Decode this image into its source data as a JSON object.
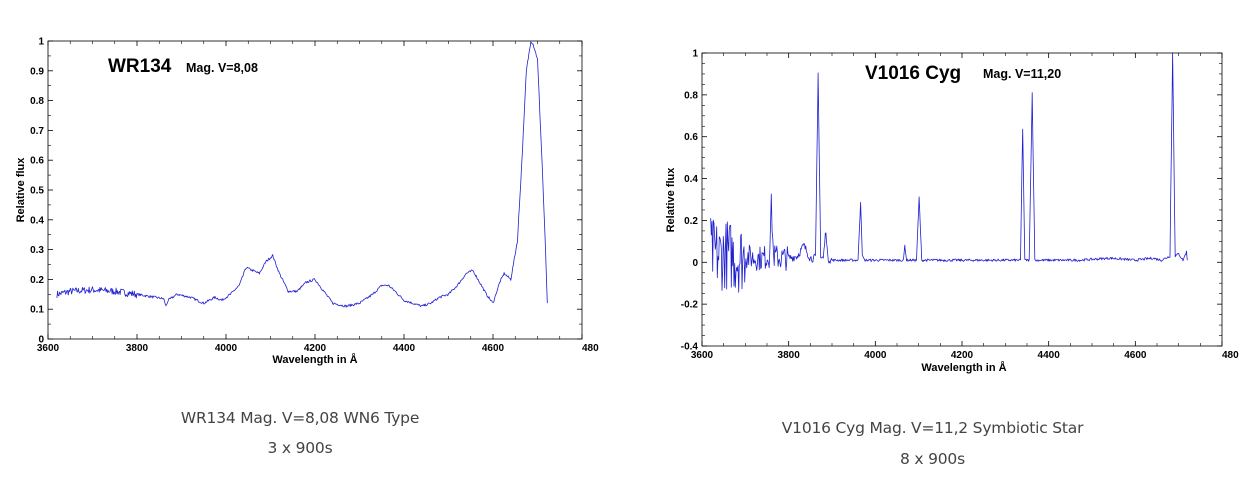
{
  "charts": [
    {
      "caption_line1": "WR134 Mag. V=8,08 WN6 Type",
      "caption_line2": "3 x 900s"
    },
    {
      "caption_line1": "V1016 Cyg Mag. V=11,2 Symbiotic Star",
      "caption_line2": "8 x 900s"
    }
  ],
  "colors": {
    "line": "#1f1fd0",
    "frame": "#000000",
    "caption_text": "#444444"
  },
  "chart_data": [
    {
      "type": "line",
      "title": "WR134",
      "subtitle": "Mag. V=8,08",
      "xlabel": "Wavelength in Å",
      "ylabel": "Relative flux",
      "xlim": [
        3600,
        4800
      ],
      "ylim": [
        0,
        1
      ],
      "x_ticks": [
        "3600",
        "3800",
        "4000",
        "4200",
        "4400",
        "4600",
        "480"
      ],
      "y_ticks": [
        "0",
        "0.1",
        "0.2",
        "0.3",
        "0.4",
        "0.5",
        "0.6",
        "0.7",
        "0.8",
        "0.9",
        "1"
      ],
      "grid": false,
      "series": [
        {
          "x": [
            3620,
            3650,
            3700,
            3750,
            3800,
            3840,
            3860,
            3865,
            3870,
            3890,
            3920,
            3950,
            3975,
            3990,
            4010,
            4030,
            4045,
            4060,
            4075,
            4090,
            4105,
            4120,
            4140,
            4160,
            4180,
            4200,
            4220,
            4240,
            4270,
            4300,
            4330,
            4350,
            4365,
            4380,
            4400,
            4420,
            4440,
            4460,
            4480,
            4500,
            4520,
            4540,
            4555,
            4570,
            4585,
            4600,
            4615,
            4625,
            4640,
            4655,
            4665,
            4675,
            4685,
            4690,
            4700,
            4710,
            4718,
            4722
          ],
          "y": [
            0.15,
            0.16,
            0.165,
            0.16,
            0.15,
            0.14,
            0.135,
            0.11,
            0.13,
            0.15,
            0.14,
            0.12,
            0.14,
            0.13,
            0.15,
            0.18,
            0.24,
            0.23,
            0.22,
            0.26,
            0.28,
            0.22,
            0.16,
            0.16,
            0.19,
            0.2,
            0.16,
            0.12,
            0.11,
            0.12,
            0.15,
            0.18,
            0.18,
            0.16,
            0.13,
            0.12,
            0.11,
            0.12,
            0.14,
            0.15,
            0.18,
            0.22,
            0.23,
            0.19,
            0.15,
            0.12,
            0.19,
            0.22,
            0.2,
            0.33,
            0.6,
            0.9,
            1.0,
            0.99,
            0.94,
            0.6,
            0.3,
            0.12
          ]
        }
      ]
    },
    {
      "type": "line",
      "title": "V1016 Cyg",
      "subtitle": "Mag. V=11,20",
      "xlabel": "Wavelength in Å",
      "ylabel": "Relative flux",
      "xlim": [
        3600,
        4800
      ],
      "ylim": [
        -0.4,
        1
      ],
      "x_ticks": [
        "3600",
        "3800",
        "4000",
        "4200",
        "4400",
        "4600",
        "480"
      ],
      "y_ticks": [
        "-0.4",
        "-0.2",
        "0",
        "0.2",
        "0.4",
        "0.6",
        "0.8",
        "1"
      ],
      "grid": false,
      "series": [
        {
          "x": [
            3620,
            3640,
            3660,
            3680,
            3700,
            3720,
            3740,
            3755,
            3760,
            3765,
            3780,
            3800,
            3820,
            3835,
            3850,
            3862,
            3868,
            3874,
            3880,
            3886,
            3890,
            3900,
            3930,
            3960,
            3966,
            3970,
            3975,
            3990,
            4030,
            4065,
            4068,
            4072,
            4095,
            4101,
            4107,
            4150,
            4200,
            4250,
            4300,
            4335,
            4340,
            4345,
            4355,
            4362,
            4368,
            4400,
            4470,
            4542,
            4600,
            4640,
            4660,
            4680,
            4686,
            4692,
            4700,
            4710,
            4718,
            4720
          ],
          "y": [
            0.05,
            0.03,
            0.04,
            0.02,
            0.03,
            0.02,
            0.02,
            0.03,
            0.27,
            0.03,
            0.02,
            0.02,
            0.03,
            0.08,
            0.02,
            0.02,
            0.9,
            0.02,
            0.02,
            0.16,
            0.02,
            0.01,
            0.01,
            0.01,
            0.29,
            0.03,
            0.01,
            0.01,
            0.01,
            0.01,
            0.08,
            0.01,
            0.01,
            0.31,
            0.01,
            0.01,
            0.01,
            0.01,
            0.01,
            0.01,
            0.64,
            0.01,
            0.01,
            0.81,
            0.01,
            0.01,
            0.01,
            0.02,
            0.01,
            0.02,
            0.01,
            0.03,
            1.0,
            0.03,
            0.04,
            0.01,
            0.05,
            0.01
          ]
        }
      ]
    }
  ]
}
